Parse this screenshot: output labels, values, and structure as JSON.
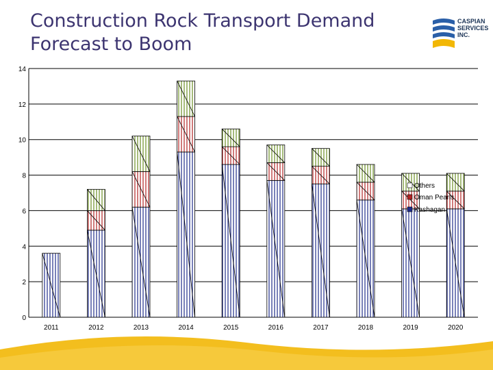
{
  "slide": {
    "title_line1": "Construction Rock Transport Demand",
    "title_line2": "Forecast to Boom"
  },
  "logo": {
    "line1": "CASPIAN",
    "line2": "SERVICES",
    "line3": "INC.",
    "icon": "caspian-waves-logo"
  },
  "colors": {
    "kashagan": "#1f2b8a",
    "oman_pearls": "#b22222",
    "others": "#6b8e23",
    "title": "#3c3470",
    "logo_blue": "#2a5fa8",
    "logo_yellow": "#f2b705"
  },
  "chart_data": {
    "type": "bar",
    "stacked": true,
    "title": "Construction Rock Transport Demand Forecast to Boom",
    "categories": [
      "2011",
      "2012",
      "2013",
      "2014",
      "2015",
      "2016",
      "2017",
      "2018",
      "2019",
      "2020"
    ],
    "series": [
      {
        "name": "Kashagan",
        "values": [
          3.6,
          4.9,
          6.2,
          9.3,
          8.6,
          7.7,
          7.5,
          6.6,
          6.1,
          6.1
        ]
      },
      {
        "name": "Oman Pearls",
        "values": [
          0,
          1.1,
          2.0,
          2.0,
          1.0,
          1.0,
          1.0,
          1.0,
          1.0,
          1.0
        ]
      },
      {
        "name": "Others",
        "values": [
          0,
          1.2,
          2.0,
          2.0,
          1.0,
          1.0,
          1.0,
          1.0,
          1.0,
          1.0
        ]
      }
    ],
    "ylim": [
      0,
      14
    ],
    "yticks": [
      0,
      2,
      4,
      6,
      8,
      10,
      12,
      14
    ],
    "grid": true,
    "legend": {
      "position": "right",
      "order": [
        "Others",
        "Oman Pearls",
        "Kashagan"
      ]
    },
    "xlabel": "",
    "ylabel": ""
  }
}
